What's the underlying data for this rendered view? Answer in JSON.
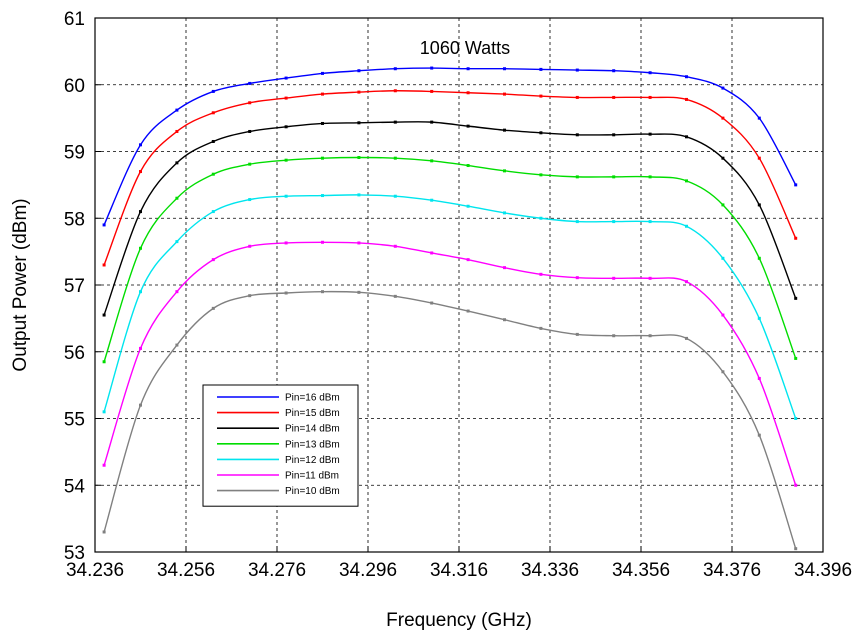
{
  "chart_data": {
    "type": "line",
    "xlabel": "Frequency (GHz)",
    "ylabel": "Output Power (dBm)",
    "annotation": "1060 Watts",
    "xlim": [
      34.236,
      34.396
    ],
    "ylim": [
      53,
      61
    ],
    "xticks": [
      "34.236",
      "34.256",
      "34.276",
      "34.296",
      "34.316",
      "34.336",
      "34.356",
      "34.376",
      "34.396"
    ],
    "yticks": [
      "53",
      "54",
      "55",
      "56",
      "57",
      "58",
      "59",
      "60",
      "61"
    ],
    "grid": true,
    "legend_position": "bottom-left",
    "x": [
      34.238,
      34.246,
      34.254,
      34.262,
      34.27,
      34.278,
      34.286,
      34.294,
      34.302,
      34.31,
      34.318,
      34.326,
      34.334,
      34.342,
      34.35,
      34.358,
      34.366,
      34.374,
      34.382,
      34.39
    ],
    "series": [
      {
        "name": "Pin=16 dBm",
        "color": "#0000ff",
        "values": [
          57.9,
          59.1,
          59.62,
          59.9,
          60.02,
          60.1,
          60.17,
          60.21,
          60.24,
          60.25,
          60.24,
          60.24,
          60.23,
          60.22,
          60.21,
          60.18,
          60.12,
          59.95,
          59.5,
          58.5
        ]
      },
      {
        "name": "Pin=15 dBm",
        "color": "#ff0000",
        "values": [
          57.3,
          58.7,
          59.3,
          59.58,
          59.73,
          59.8,
          59.86,
          59.89,
          59.91,
          59.9,
          59.88,
          59.86,
          59.83,
          59.81,
          59.81,
          59.81,
          59.78,
          59.5,
          58.9,
          57.7
        ]
      },
      {
        "name": "Pin=14 dBm",
        "color": "#000000",
        "values": [
          56.55,
          58.1,
          58.83,
          59.15,
          59.3,
          59.37,
          59.42,
          59.43,
          59.44,
          59.44,
          59.38,
          59.32,
          59.28,
          59.25,
          59.25,
          59.26,
          59.22,
          58.9,
          58.2,
          56.8
        ]
      },
      {
        "name": "Pin=13 dBm",
        "color": "#00dd00",
        "values": [
          55.85,
          57.55,
          58.3,
          58.66,
          58.81,
          58.87,
          58.9,
          58.91,
          58.9,
          58.86,
          58.79,
          58.71,
          58.65,
          58.62,
          58.62,
          58.62,
          58.56,
          58.2,
          57.4,
          55.9
        ]
      },
      {
        "name": "Pin=12 dBm",
        "color": "#00e5ee",
        "values": [
          55.1,
          56.9,
          57.65,
          58.1,
          58.28,
          58.33,
          58.34,
          58.35,
          58.33,
          58.27,
          58.18,
          58.08,
          58.0,
          57.95,
          57.95,
          57.95,
          57.88,
          57.4,
          56.5,
          55.0
        ]
      },
      {
        "name": "Pin=11 dBm",
        "color": "#ff00ff",
        "values": [
          54.3,
          56.05,
          56.9,
          57.38,
          57.58,
          57.63,
          57.64,
          57.63,
          57.58,
          57.48,
          57.38,
          57.26,
          57.16,
          57.11,
          57.1,
          57.1,
          57.05,
          56.55,
          55.6,
          54.0
        ]
      },
      {
        "name": "Pin=10 dBm",
        "color": "#808080",
        "values": [
          53.3,
          55.2,
          56.1,
          56.65,
          56.84,
          56.88,
          56.9,
          56.89,
          56.83,
          56.73,
          56.61,
          56.48,
          56.35,
          56.26,
          56.24,
          56.24,
          56.2,
          55.7,
          54.75,
          53.05
        ]
      }
    ]
  }
}
